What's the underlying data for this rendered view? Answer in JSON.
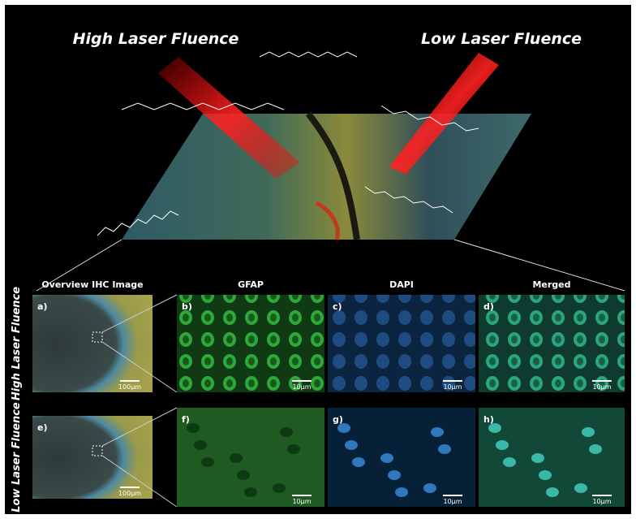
{
  "header": {
    "left": "High Laser Fluence",
    "right": "Low Laser Fluence"
  },
  "columns": [
    "Overview IHC Image",
    "GFAP",
    "DAPI",
    "Merged"
  ],
  "rows": [
    {
      "label": "High Laser Fluence",
      "panels": [
        "a)",
        "b)",
        "c)",
        "d)"
      ]
    },
    {
      "label": "Low Laser Fluence",
      "panels": [
        "e)",
        "f)",
        "g)",
        "h)"
      ]
    }
  ],
  "scale_bars": {
    "overview": "100µm",
    "detail": "10µm"
  }
}
